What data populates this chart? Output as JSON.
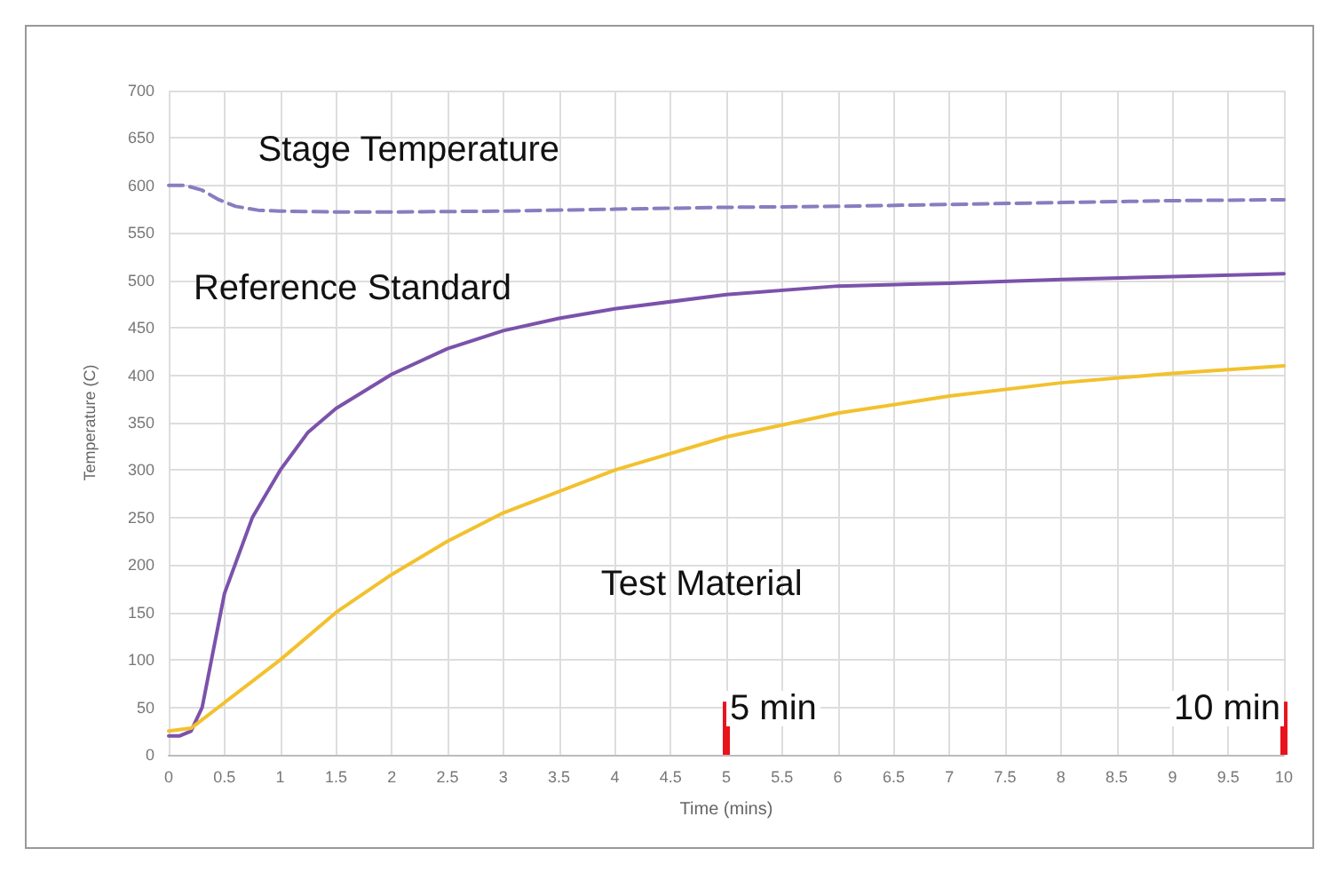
{
  "chart_data": {
    "type": "line",
    "xlabel": "Time (mins)",
    "ylabel": "Temperature (C)",
    "xlim": [
      0,
      10
    ],
    "xticks": [
      0,
      0.5,
      1,
      1.5,
      2,
      2.5,
      3,
      3.5,
      4,
      4.5,
      5,
      5.5,
      6,
      6.5,
      7,
      7.5,
      8,
      8.5,
      9,
      9.5,
      10
    ],
    "ylim": [
      0,
      700
    ],
    "yticks": [
      0,
      50,
      100,
      150,
      200,
      250,
      300,
      350,
      400,
      450,
      500,
      550,
      600,
      650,
      700
    ],
    "grid": true,
    "marker": "none",
    "series": [
      {
        "name": "Stage Temperature",
        "color": "#8a7cc0",
        "line_style": "dashed",
        "x": [
          0,
          0.15,
          0.3,
          0.45,
          0.6,
          0.8,
          1,
          1.5,
          2,
          3,
          4,
          5,
          6,
          7,
          8,
          9,
          10
        ],
        "values": [
          600,
          600,
          595,
          585,
          578,
          574,
          573,
          572,
          572,
          573,
          575,
          577,
          578,
          580,
          582,
          584,
          585
        ]
      },
      {
        "name": "Reference Standard",
        "color": "#7b52ab",
        "line_style": "solid",
        "x": [
          0,
          0.1,
          0.2,
          0.3,
          0.4,
          0.5,
          0.75,
          1,
          1.25,
          1.5,
          2,
          2.5,
          3,
          3.5,
          4,
          5,
          6,
          7,
          8,
          9,
          10
        ],
        "values": [
          20,
          20,
          25,
          50,
          110,
          170,
          250,
          300,
          340,
          365,
          401,
          428,
          447,
          460,
          470,
          485,
          494,
          497,
          501,
          504,
          507
        ]
      },
      {
        "name": "Test Material",
        "color": "#f2c12e",
        "line_style": "solid",
        "x": [
          0,
          0.2,
          0.5,
          1,
          1.5,
          2,
          2.5,
          3,
          4,
          5,
          6,
          7,
          8,
          9,
          10
        ],
        "values": [
          25,
          28,
          55,
          100,
          150,
          190,
          225,
          255,
          300,
          335,
          360,
          378,
          392,
          402,
          410
        ]
      }
    ],
    "ref_lines": [
      {
        "axis": "x",
        "value": 5,
        "label": "5 min",
        "color": "#e8141c"
      },
      {
        "axis": "x",
        "value": 10,
        "label": "10 min",
        "color": "#e8141c"
      }
    ]
  }
}
